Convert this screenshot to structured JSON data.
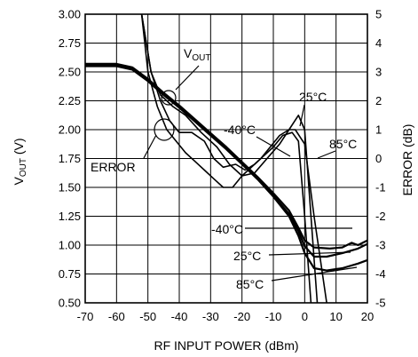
{
  "chart_data": {
    "type": "line",
    "xlabel": "RF INPUT POWER (dBm)",
    "ylabel": {
      "main": "V",
      "sub": "OUT",
      "unit": " (V)"
    },
    "ylabel_right": "ERROR (dB)",
    "xlim": [
      -70,
      20
    ],
    "ylim": [
      0.5,
      3.0
    ],
    "ylim_right": [
      -5,
      5
    ],
    "x_ticks": [
      -70,
      -60,
      -50,
      -40,
      -30,
      -20,
      -10,
      0,
      10,
      20
    ],
    "y_ticks": [
      "0.50",
      "0.75",
      "1.00",
      "1.25",
      "1.50",
      "1.75",
      "2.00",
      "2.25",
      "2.50",
      "2.75",
      "3.00"
    ],
    "y_ticks_right": [
      "-5",
      "-4",
      "-3",
      "-2",
      "-1",
      "0",
      "1",
      "2",
      "3",
      "4",
      "5"
    ],
    "grid": true,
    "series": [
      {
        "name": "VOUT 25°C",
        "axis": "left",
        "points": [
          [
            -70,
            2.56
          ],
          [
            -60,
            2.56
          ],
          [
            -55,
            2.53
          ],
          [
            -50,
            2.43
          ],
          [
            -45,
            2.31
          ],
          [
            -40,
            2.2
          ],
          [
            -35,
            2.08
          ],
          [
            -30,
            1.96
          ],
          [
            -25,
            1.84
          ],
          [
            -20,
            1.71
          ],
          [
            -15,
            1.58
          ],
          [
            -10,
            1.43
          ],
          [
            -5,
            1.27
          ],
          [
            -2,
            1.12
          ],
          [
            0,
            0.99
          ],
          [
            3,
            0.9
          ],
          [
            7,
            0.9
          ],
          [
            12,
            0.93
          ],
          [
            17,
            0.97
          ],
          [
            20,
            1.01
          ]
        ]
      },
      {
        "name": "VOUT -40°C",
        "axis": "left",
        "points": [
          [
            -70,
            2.57
          ],
          [
            -60,
            2.57
          ],
          [
            -55,
            2.54
          ],
          [
            -50,
            2.44
          ],
          [
            -45,
            2.32
          ],
          [
            -40,
            2.21
          ],
          [
            -35,
            2.09
          ],
          [
            -30,
            1.97
          ],
          [
            -25,
            1.85
          ],
          [
            -20,
            1.72
          ],
          [
            -15,
            1.59
          ],
          [
            -10,
            1.45
          ],
          [
            -5,
            1.3
          ],
          [
            -2,
            1.15
          ],
          [
            0,
            1.04
          ],
          [
            3,
            0.98
          ],
          [
            8,
            0.97
          ],
          [
            12,
            0.98
          ],
          [
            15,
            1.02
          ],
          [
            17,
            1.0
          ],
          [
            20,
            1.04
          ]
        ]
      },
      {
        "name": "VOUT 85°C",
        "axis": "left",
        "points": [
          [
            -70,
            2.55
          ],
          [
            -60,
            2.55
          ],
          [
            -55,
            2.52
          ],
          [
            -50,
            2.42
          ],
          [
            -45,
            2.3
          ],
          [
            -40,
            2.19
          ],
          [
            -35,
            2.07
          ],
          [
            -30,
            1.95
          ],
          [
            -25,
            1.83
          ],
          [
            -20,
            1.7
          ],
          [
            -15,
            1.57
          ],
          [
            -10,
            1.42
          ],
          [
            -5,
            1.25
          ],
          [
            -2,
            1.08
          ],
          [
            0,
            0.93
          ],
          [
            3,
            0.8
          ],
          [
            7,
            0.78
          ],
          [
            12,
            0.8
          ],
          [
            17,
            0.84
          ],
          [
            20,
            0.87
          ]
        ]
      },
      {
        "name": "ERROR 25°C",
        "axis": "right",
        "points": [
          [
            -52,
            5.0
          ],
          [
            -49,
            3.0
          ],
          [
            -46,
            2.2
          ],
          [
            -42,
            1.8
          ],
          [
            -38,
            1.5
          ],
          [
            -33,
            0.9
          ],
          [
            -28,
            0.4
          ],
          [
            -24,
            -0.2
          ],
          [
            -20,
            -0.6
          ],
          [
            -16,
            -0.5
          ],
          [
            -12,
            0.0
          ],
          [
            -8,
            0.5
          ],
          [
            -5,
            1.0
          ],
          [
            -2,
            1.5
          ],
          [
            0,
            1.0
          ],
          [
            2,
            -2.0
          ],
          [
            4,
            -5.0
          ]
        ]
      },
      {
        "name": "ERROR -40°C",
        "axis": "right",
        "points": [
          [
            -52,
            5.0
          ],
          [
            -49,
            3.0
          ],
          [
            -46,
            2.0
          ],
          [
            -43,
            1.3
          ],
          [
            -40,
            0.9
          ],
          [
            -36,
            0.9
          ],
          [
            -32,
            0.6
          ],
          [
            -29,
            0.0
          ],
          [
            -26,
            -0.3
          ],
          [
            -22,
            -0.2
          ],
          [
            -19,
            -0.4
          ],
          [
            -16,
            -0.2
          ],
          [
            -13,
            0.1
          ],
          [
            -10,
            0.4
          ],
          [
            -7,
            0.8
          ],
          [
            -4,
            0.9
          ],
          [
            -2,
            0.6
          ],
          [
            0,
            -2.0
          ],
          [
            2,
            -5.0
          ]
        ]
      },
      {
        "name": "ERROR 85°C",
        "axis": "right",
        "points": [
          [
            -52,
            5.0
          ],
          [
            -50,
            3.0
          ],
          [
            -47,
            1.8
          ],
          [
            -44,
            1.0
          ],
          [
            -41,
            0.6
          ],
          [
            -38,
            0.2
          ],
          [
            -35,
            -0.1
          ],
          [
            -32,
            -0.4
          ],
          [
            -29,
            -0.7
          ],
          [
            -26,
            -1.0
          ],
          [
            -23,
            -1.0
          ],
          [
            -20,
            -0.6
          ],
          [
            -17,
            -0.3
          ],
          [
            -14,
            0.0
          ],
          [
            -11,
            0.4
          ],
          [
            -8,
            0.8
          ],
          [
            -5,
            1.0
          ],
          [
            -3,
            1.0
          ],
          [
            0,
            0.5
          ],
          [
            3,
            -2.0
          ],
          [
            5,
            -3.5
          ],
          [
            7,
            -5.0
          ]
        ]
      }
    ]
  },
  "annotations": {
    "vout": {
      "main": "V",
      "sub": "OUT"
    },
    "error": "ERROR",
    "t25_top": "25°C",
    "tm40_top": "-40°C",
    "t85_top": "85°C",
    "tm40_bottom": "-40°C",
    "t25_bottom": "25°C",
    "t85_bottom": "85°C"
  }
}
